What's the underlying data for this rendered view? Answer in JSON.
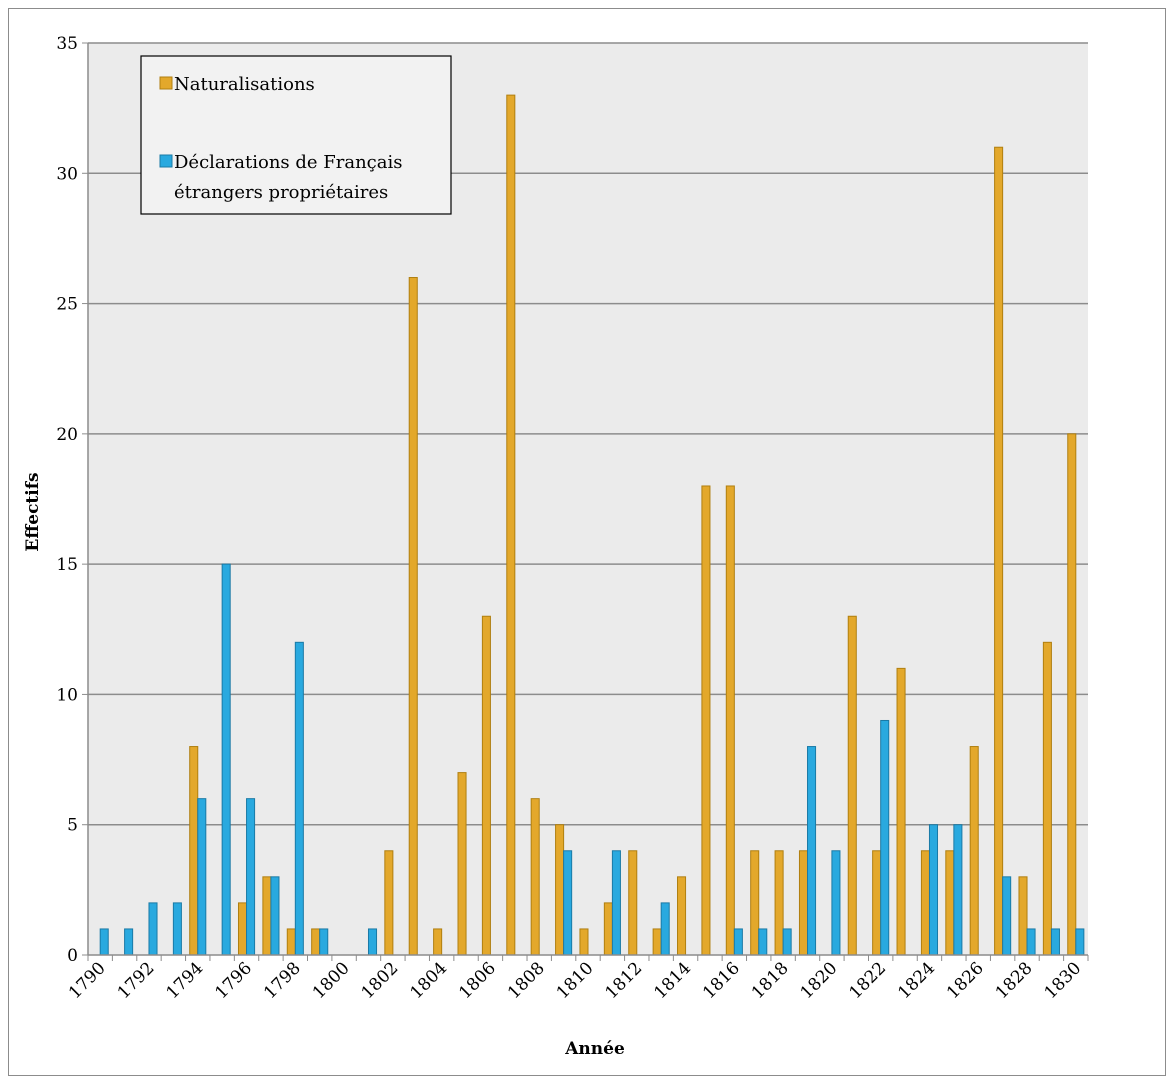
{
  "chart_data": {
    "type": "bar",
    "xlabel": "Année",
    "ylabel": "Effectifs",
    "ylim": [
      0,
      35
    ],
    "yticks": [
      0,
      5,
      10,
      15,
      20,
      25,
      30,
      35
    ],
    "grid": true,
    "legend_position": "top-left",
    "categories": [
      "1790",
      "1791",
      "1792",
      "1793",
      "1794",
      "1795",
      "1796",
      "1797",
      "1798",
      "1799",
      "1800",
      "1801",
      "1802",
      "1803",
      "1804",
      "1805",
      "1806",
      "1807",
      "1808",
      "1809",
      "1810",
      "1811",
      "1812",
      "1813",
      "1814",
      "1815",
      "1816",
      "1817",
      "1818",
      "1819",
      "1820",
      "1821",
      "1822",
      "1823",
      "1824",
      "1825",
      "1826",
      "1827",
      "1828",
      "1829",
      "1830"
    ],
    "tick_labels": [
      "1790",
      "1792",
      "1794",
      "1796",
      "1798",
      "1800",
      "1802",
      "1804",
      "1806",
      "1808",
      "1810",
      "1812",
      "1814",
      "1816",
      "1818",
      "1820",
      "1822",
      "1824",
      "1826",
      "1828",
      "1830"
    ],
    "series": [
      {
        "name": "Naturalisations",
        "color": "#e3a82b",
        "values": [
          0,
          0,
          0,
          0,
          8,
          0,
          2,
          3,
          1,
          1,
          0,
          0,
          4,
          26,
          1,
          7,
          13,
          33,
          6,
          5,
          1,
          2,
          4,
          1,
          3,
          18,
          18,
          4,
          4,
          4,
          0,
          13,
          4,
          11,
          4,
          4,
          8,
          31,
          3,
          12,
          20
        ]
      },
      {
        "name": "Déclarations de Français\nétrangers propriétaires",
        "color": "#29a9df",
        "values": [
          1,
          1,
          2,
          2,
          6,
          15,
          6,
          3,
          12,
          1,
          0,
          1,
          0,
          0,
          0,
          0,
          0,
          0,
          0,
          4,
          0,
          4,
          0,
          2,
          0,
          0,
          1,
          1,
          1,
          8,
          4,
          0,
          9,
          0,
          5,
          5,
          0,
          3,
          1,
          1,
          1
        ]
      }
    ],
    "legend": {
      "entries": [
        {
          "line1": "Naturalisations",
          "line2": ""
        },
        {
          "line1": "Déclarations de Français",
          "line2": "étrangers propriétaires"
        }
      ]
    },
    "colors": {
      "plot_bg": "#ebebeb",
      "grid": "#8c8c8c"
    }
  }
}
